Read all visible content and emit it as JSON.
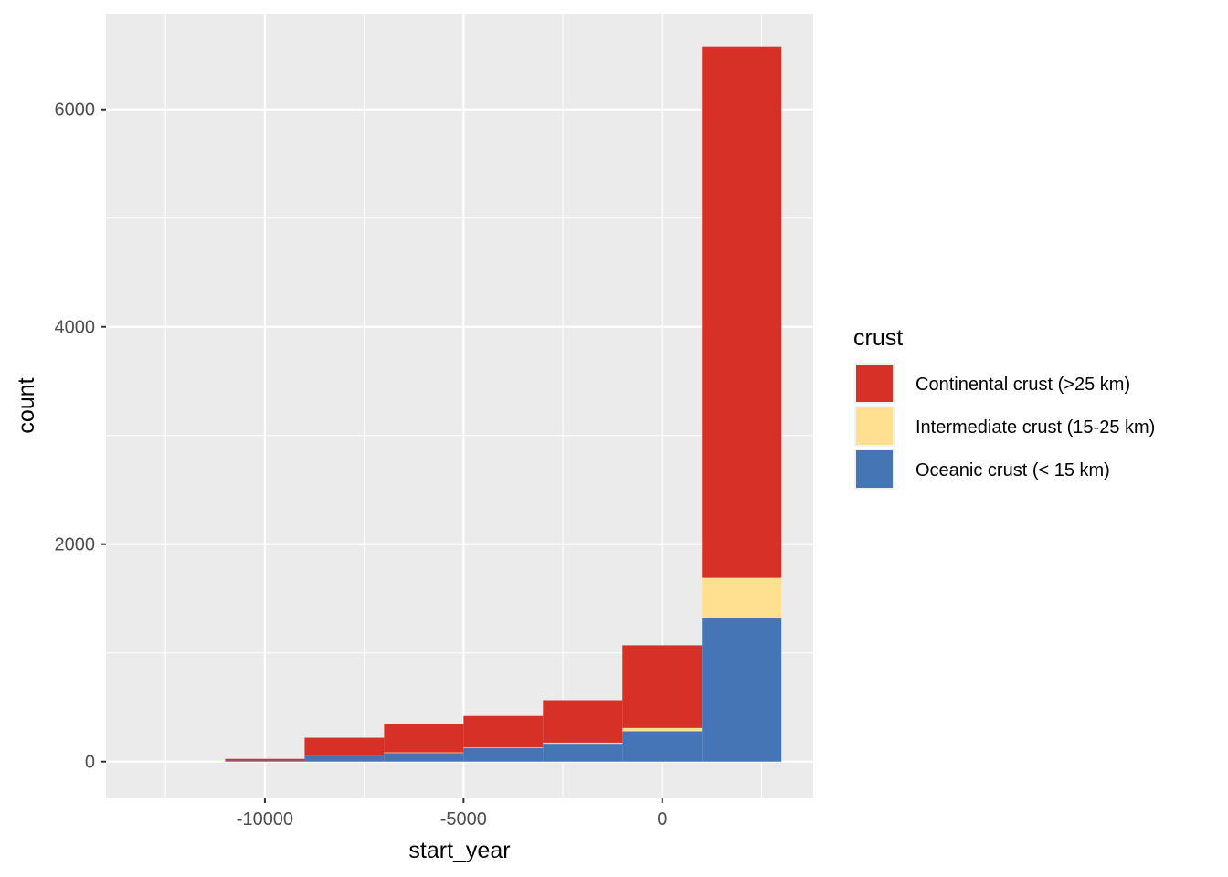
{
  "chart_data": {
    "type": "bar",
    "subtype": "stacked-histogram",
    "title": "",
    "xlabel": "start_year",
    "ylabel": "count",
    "xlim": [
      -14000,
      3800
    ],
    "ylim": [
      -330,
      6880
    ],
    "x_ticks": [
      -10000,
      -5000,
      0
    ],
    "x_tick_labels": [
      "-10000",
      "-5000",
      "0"
    ],
    "y_ticks": [
      0,
      2000,
      4000,
      6000
    ],
    "y_tick_labels": [
      "0",
      "2000",
      "4000",
      "6000"
    ],
    "grid": true,
    "legend": {
      "title": "crust",
      "position": "right"
    },
    "bins": [
      {
        "start": -11000,
        "end": -9000
      },
      {
        "start": -9000,
        "end": -7000
      },
      {
        "start": -7000,
        "end": -5000
      },
      {
        "start": -5000,
        "end": -3000
      },
      {
        "start": -3000,
        "end": -1000
      },
      {
        "start": -1000,
        "end": 1000
      },
      {
        "start": 1000,
        "end": 3000
      }
    ],
    "series": [
      {
        "name": "Oceanic crust (< 15 km)",
        "color": "#4575b4",
        "values": [
          10,
          50,
          80,
          125,
          165,
          280,
          1320
        ]
      },
      {
        "name": "Intermediate crust (15-25 km)",
        "color": "#fee090",
        "values": [
          0,
          0,
          5,
          5,
          10,
          30,
          370
        ]
      },
      {
        "name": "Continental crust (>25 km)",
        "color": "#d73027",
        "values": [
          15,
          170,
          265,
          290,
          390,
          760,
          4890
        ]
      }
    ],
    "legend_order": [
      "Continental crust (>25 km)",
      "Intermediate crust (15-25 km)",
      "Oceanic crust (< 15 km)"
    ]
  }
}
